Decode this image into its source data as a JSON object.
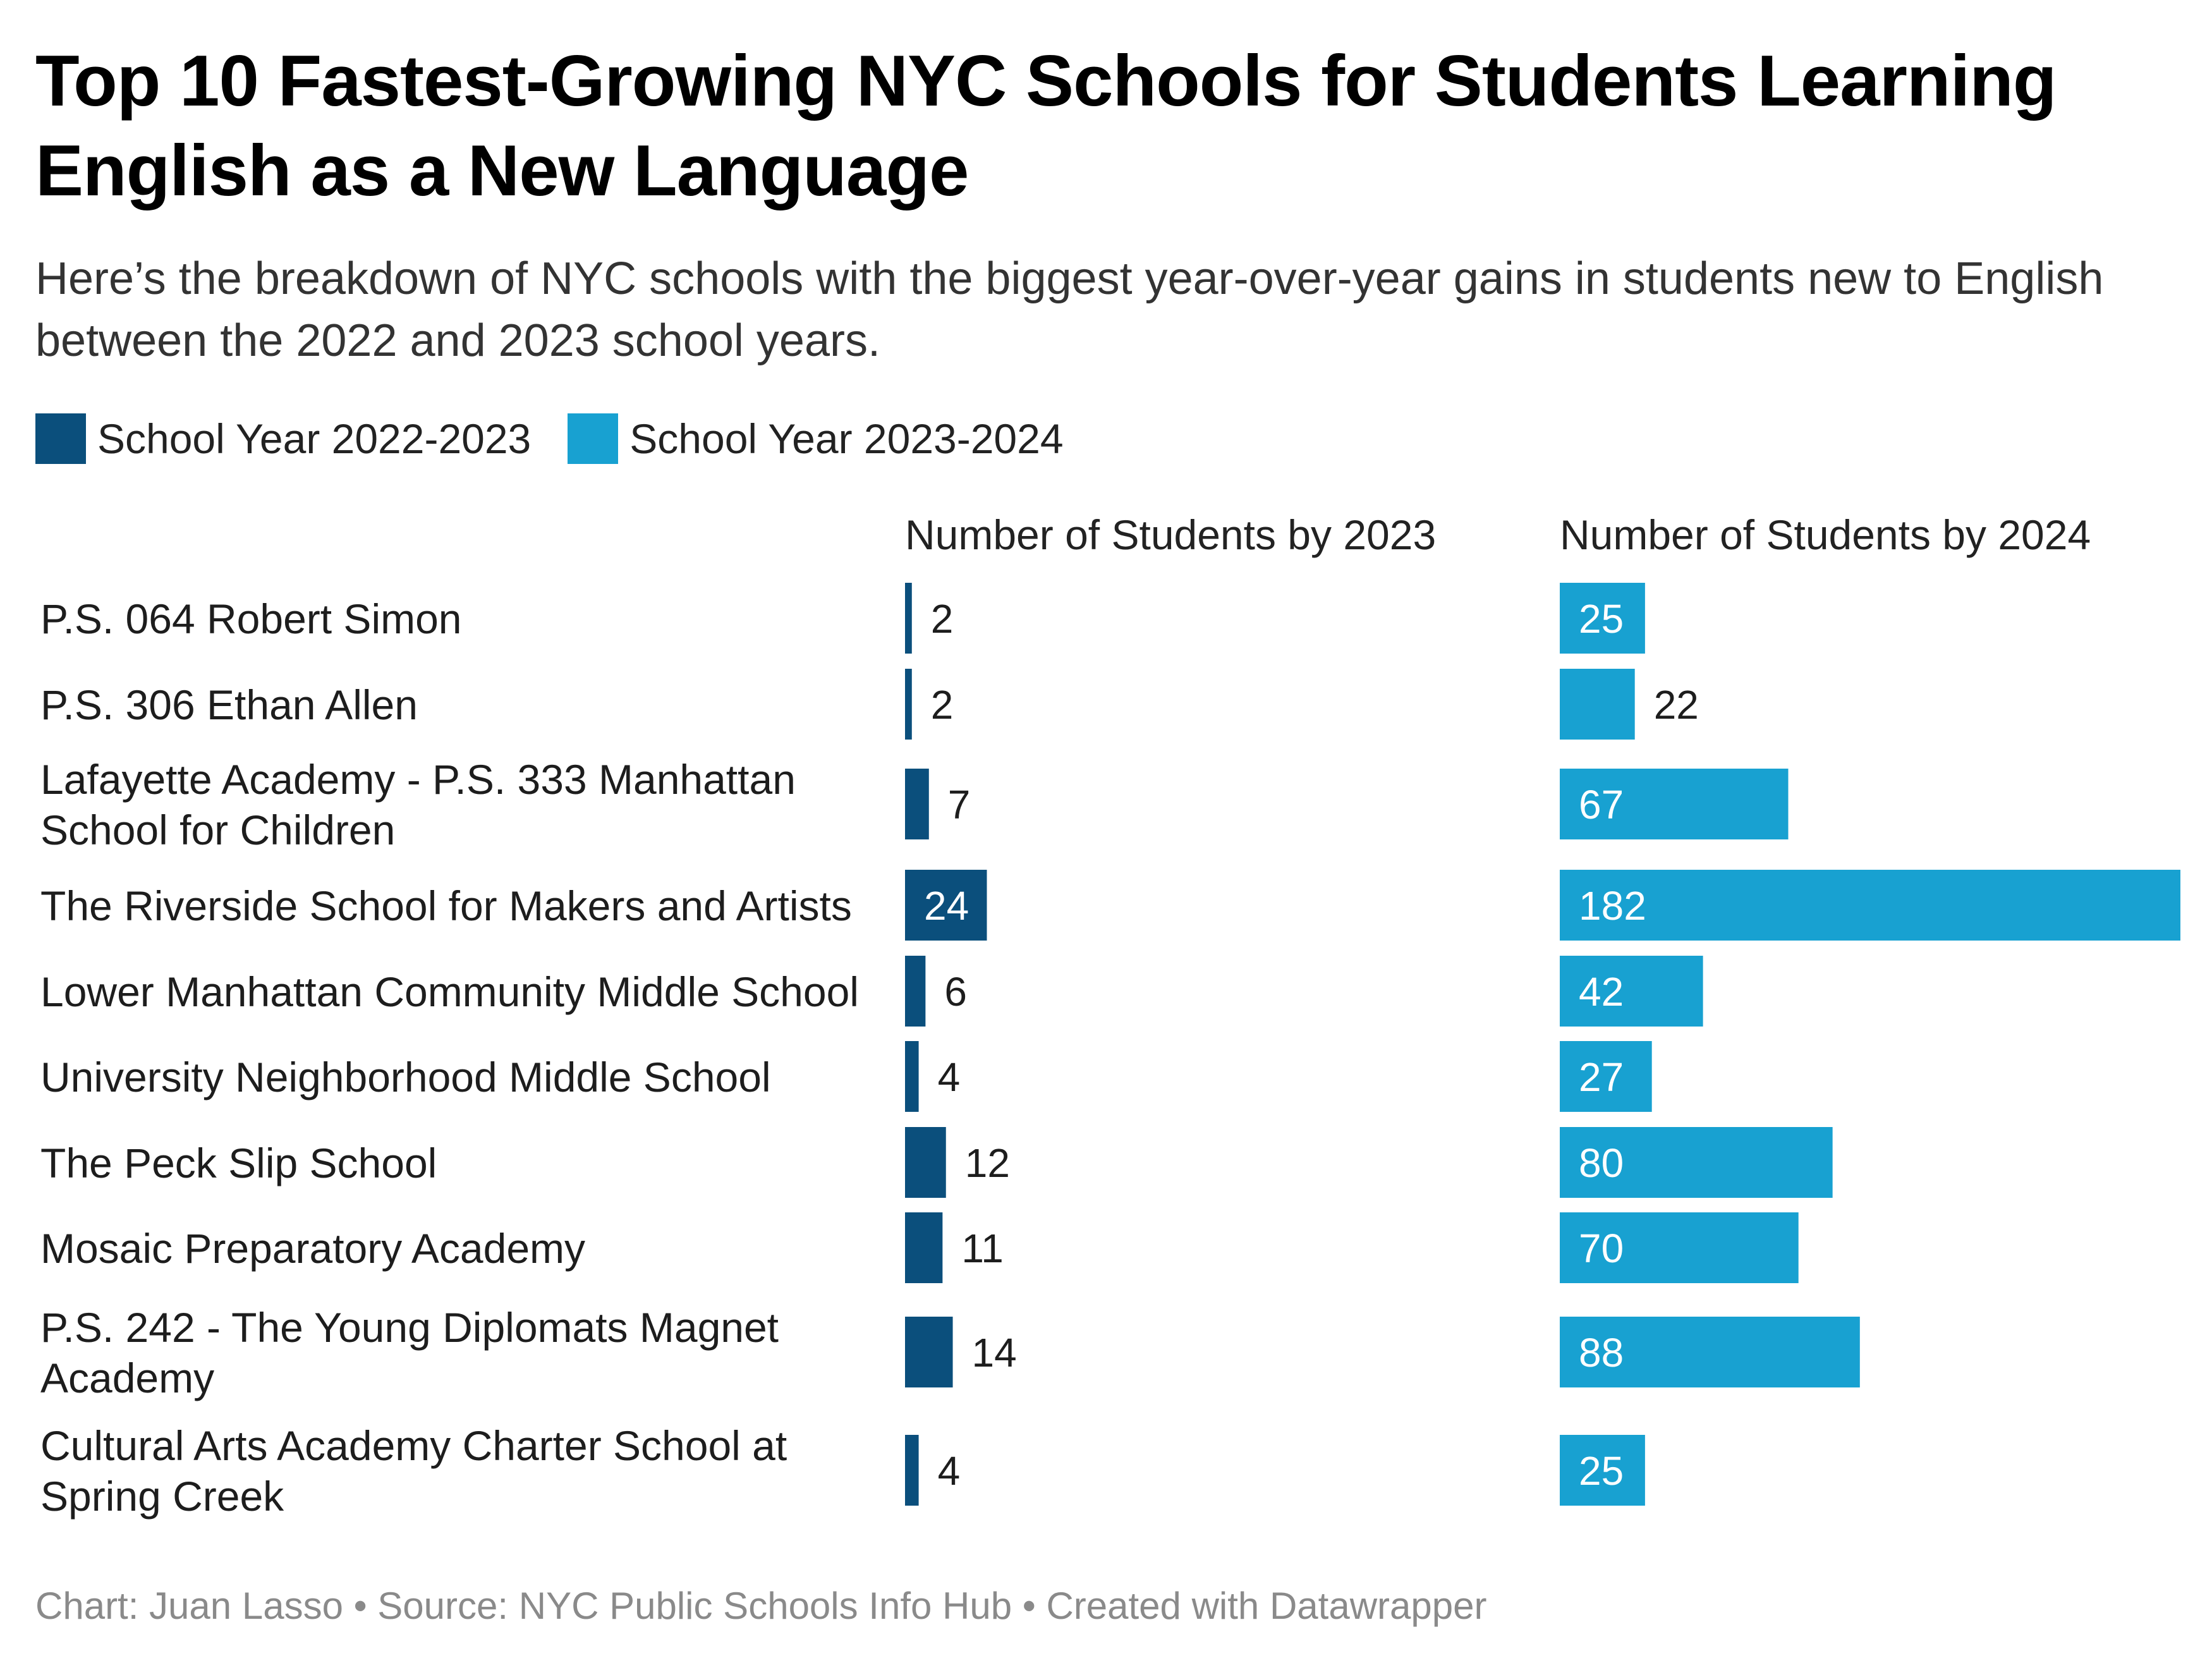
{
  "title": "Top 10 Fastest-Growing NYC Schools for Students Learning English as a New Language",
  "subtitle": "Here’s the breakdown of NYC schools with the biggest year-over-year gains in students new to English between the 2022 and 2023 school years.",
  "footer": "Chart: Juan Lasso • Source: NYC Public Schools Info Hub • Created with Datawrapper",
  "colors": {
    "series_2022": "#0b4f7c",
    "series_2023": "#18a1d1",
    "label_dark": "#1d1d1d",
    "label_light": "#ffffff"
  },
  "chart_data": {
    "type": "bar",
    "orientation": "horizontal",
    "legend": "top-left",
    "grid": false,
    "categories": [
      "P.S. 064 Robert Simon",
      "P.S. 306 Ethan Allen",
      "Lafayette Academy - P.S. 333 Manhattan School for Children",
      "The Riverside School for Makers and Artists",
      "Lower Manhattan Community Middle School",
      "University Neighborhood Middle School",
      "The Peck Slip School",
      "Mosaic Preparatory Academy",
      "P.S. 242 - The Young Diplomats Magnet Academy",
      "Cultural Arts Academy Charter School at Spring Creek"
    ],
    "series": [
      {
        "name": "School Year 2022-2023",
        "column_label": "Number of Students by 2023",
        "values": [
          2,
          2,
          7,
          24,
          6,
          4,
          12,
          11,
          14,
          4
        ]
      },
      {
        "name": "School Year 2023-2024",
        "column_label": "Number of Students by 2024",
        "values": [
          25,
          22,
          67,
          182,
          42,
          27,
          80,
          70,
          88,
          25
        ]
      }
    ],
    "xlim": [
      0,
      182
    ]
  }
}
